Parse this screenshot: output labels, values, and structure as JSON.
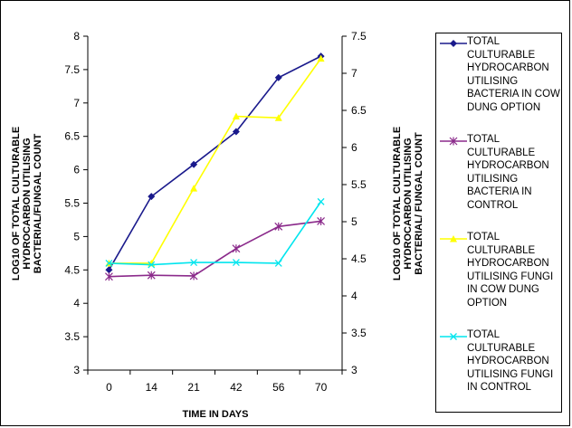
{
  "chart_data": {
    "type": "line",
    "title": "",
    "xlabel": "TIME IN DAYS",
    "ylabel": "LOG10 OF TOTAL CULTURABLE HYDROCARBON UTILISING BACTERIAL/FUNGAL COUNT",
    "y2label": "LOG10 OF TOTAL CULTURABLE HYDROCARBON UTILISING BACTERIAL/ FUNGAL COUNT",
    "categories": [
      "0",
      "14",
      "21",
      "42",
      "56",
      "70"
    ],
    "ylim": [
      3,
      8
    ],
    "y2lim": [
      3,
      7.5
    ],
    "yticks": [
      "3",
      "3.5",
      "4",
      "4.5",
      "5",
      "5.5",
      "6",
      "6.5",
      "7",
      "7.5",
      "8"
    ],
    "y2ticks": [
      "3",
      "3.5",
      "4",
      "4.5",
      "5",
      "5.5",
      "6",
      "6.5",
      "7",
      "7.5"
    ],
    "grid": false,
    "legend_position": "right",
    "series": [
      {
        "name": "TOTAL CULTURABLE HYDROCARBON UTILISING BACTERIA IN COW DUNG OPTION",
        "axis": "left",
        "color": "#1a1a8c",
        "marker": "diamond",
        "values": [
          4.5,
          5.6,
          6.08,
          6.57,
          7.38,
          7.7
        ]
      },
      {
        "name": "TOTAL CULTURABLE HYDROCARBON UTILISING BACTERIA IN CONTROL",
        "axis": "left",
        "color": "#8b2a8b",
        "marker": "star",
        "values": [
          4.4,
          4.42,
          4.41,
          4.82,
          5.15,
          5.23
        ]
      },
      {
        "name": "TOTAL CULTURABLE HYDROCARBON UTILISING FUNGI IN COW DUNG OPTION",
        "axis": "right",
        "color": "#ffff00",
        "marker": "triangle",
        "values": [
          4.44,
          4.44,
          5.45,
          6.42,
          6.4,
          7.2
        ]
      },
      {
        "name": "TOTAL CULTURABLE HYDROCARBON UTILISING FUNGI IN CONTROL",
        "axis": "right",
        "color": "#00e5ee",
        "marker": "x",
        "values": [
          4.44,
          4.42,
          4.45,
          4.45,
          4.44,
          5.27
        ]
      }
    ]
  }
}
